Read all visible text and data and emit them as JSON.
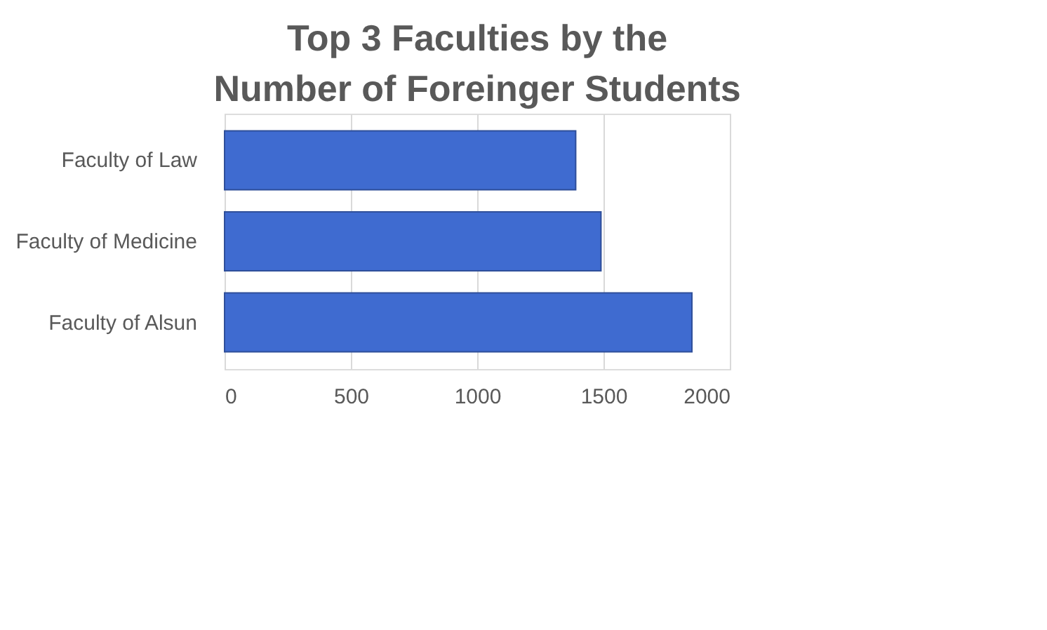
{
  "chart_data": {
    "type": "bar",
    "orientation": "horizontal",
    "title": "Top 3 Faculties by the Number of Foreinger Students",
    "categories": [
      "Faculty of Law",
      "Faculty of Medicine",
      "Faculty of Alsun"
    ],
    "values": [
      1390,
      1490,
      1850
    ],
    "color": "#3f6bd0",
    "xlim": [
      0,
      2000
    ],
    "xticks": [
      0,
      500,
      1000,
      1500,
      2000
    ],
    "grid": "x"
  }
}
